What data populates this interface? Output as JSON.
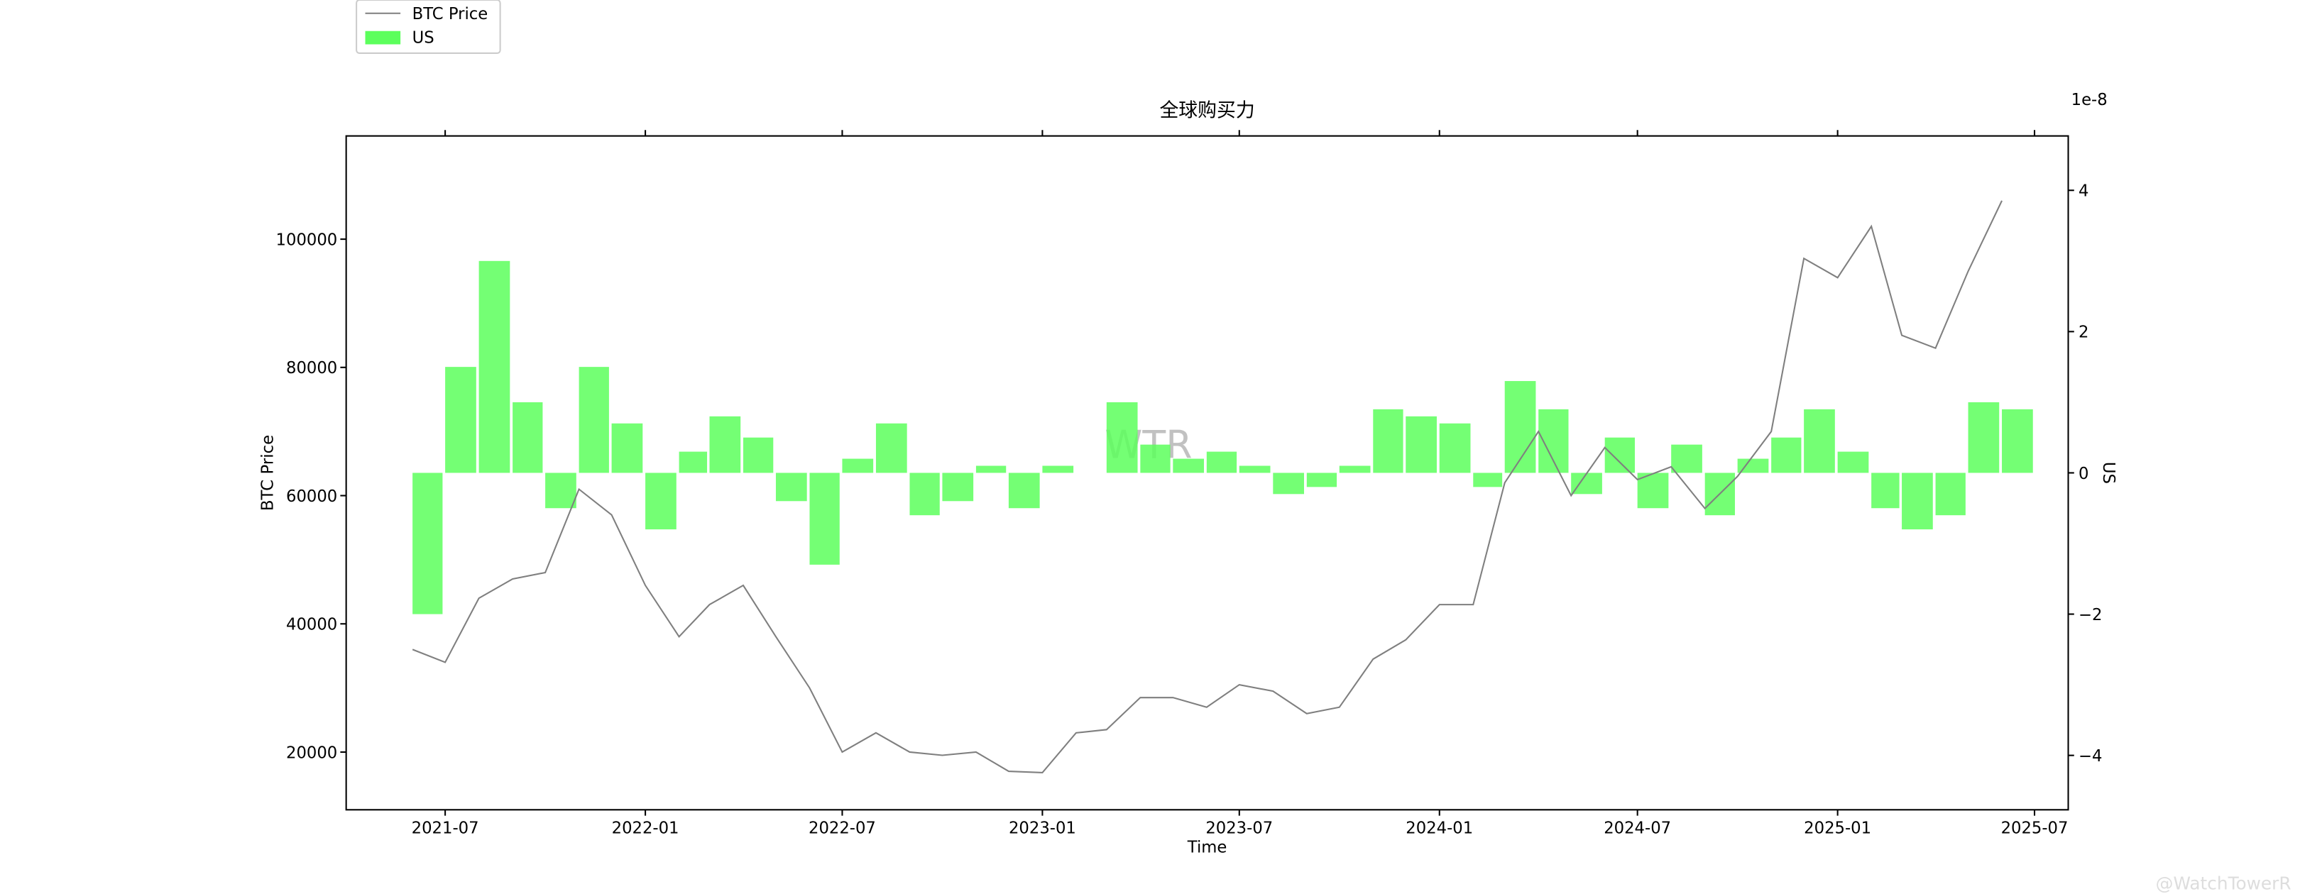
{
  "chart_data": {
    "type": "combo",
    "title": "全球购买力",
    "x_label": "Time",
    "y_label": "BTC Price",
    "y2_label": "US",
    "y2_offset": "1e-8",
    "watermark": "WTR",
    "credit": "@WatchTowerR",
    "x": [
      "2021-06",
      "2021-07",
      "2021-08",
      "2021-09",
      "2021-10",
      "2021-11",
      "2021-12",
      "2022-01",
      "2022-02",
      "2022-03",
      "2022-04",
      "2022-05",
      "2022-06",
      "2022-07",
      "2022-08",
      "2022-09",
      "2022-10",
      "2022-11",
      "2022-12",
      "2023-01",
      "2023-02",
      "2023-03",
      "2023-04",
      "2023-05",
      "2023-06",
      "2023-07",
      "2023-08",
      "2023-09",
      "2023-10",
      "2023-11",
      "2023-12",
      "2024-01",
      "2024-02",
      "2024-03",
      "2024-04",
      "2024-05",
      "2024-06",
      "2024-07",
      "2024-08",
      "2024-09",
      "2024-10",
      "2024-11",
      "2024-12",
      "2025-01",
      "2025-02",
      "2025-03",
      "2025-04",
      "2025-05",
      "2025-06"
    ],
    "series": [
      {
        "name": "BTC Price",
        "type": "line",
        "color": "#7f7f7f",
        "values": [
          36000,
          34000,
          44000,
          47000,
          48000,
          61000,
          57000,
          46000,
          38000,
          43000,
          46000,
          38000,
          30000,
          20000,
          23000,
          20000,
          19500,
          20000,
          17000,
          16800,
          23000,
          23500,
          28500,
          28500,
          27000,
          30500,
          29500,
          26000,
          27000,
          34500,
          37500,
          43000,
          43000,
          62000,
          70000,
          60000,
          67500,
          62500,
          64500,
          58000,
          63000,
          70000,
          97000,
          94000,
          102000,
          85000,
          83000,
          95000,
          106000
        ]
      },
      {
        "name": "US",
        "type": "bar",
        "axis": "y2",
        "color": "#5cff5c",
        "values": [
          -2,
          1.5,
          3,
          1,
          -0.5,
          1.5,
          0.7,
          -0.8,
          0.3,
          0.8,
          0.5,
          -0.4,
          -1.3,
          0.2,
          0.7,
          -0.6,
          -0.4,
          0.1,
          -0.5,
          0.1,
          0,
          1.0,
          0.4,
          0.2,
          0.3,
          0.1,
          -0.3,
          -0.2,
          0.1,
          0.9,
          0.8,
          0.7,
          -0.2,
          1.3,
          0.9,
          -0.3,
          0.5,
          -0.5,
          0.4,
          -0.6,
          0.2,
          0.5,
          0.9,
          0.3,
          -0.5,
          -0.8,
          -0.6,
          1.0,
          0.9
        ]
      }
    ],
    "xlim": [
      "2021-04",
      "2025-08"
    ],
    "xticks": [
      "2021-07",
      "2022-01",
      "2022-07",
      "2023-01",
      "2023-07",
      "2024-01",
      "2024-07",
      "2025-01",
      "2025-07"
    ],
    "ylim": [
      11000,
      116100
    ],
    "yticks": [
      20000,
      40000,
      60000,
      80000,
      100000
    ],
    "y2lim": [
      -4.77,
      4.77
    ],
    "y2ticks": [
      {
        "value": -4,
        "label": "−4"
      },
      {
        "value": -2,
        "label": "−2"
      },
      0,
      2,
      4
    ],
    "legend": "top-left"
  }
}
